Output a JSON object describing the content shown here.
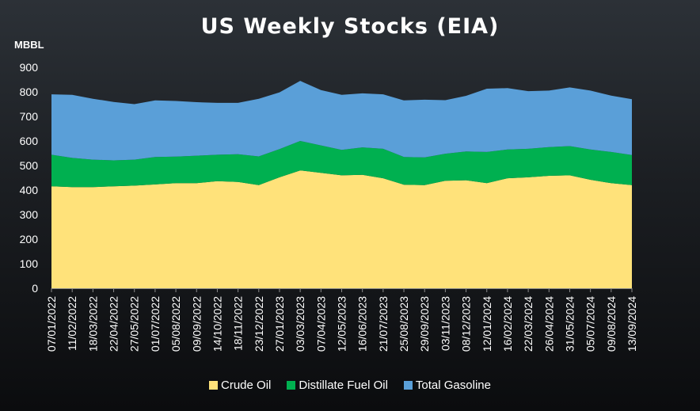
{
  "chart_data": {
    "type": "area",
    "stacked": true,
    "title": "US Weekly Stocks (EIA)",
    "ylabel": "MBBL",
    "ylim": [
      0,
      900
    ],
    "yticks": [
      0,
      100,
      200,
      300,
      400,
      500,
      600,
      700,
      800,
      900
    ],
    "grid": false,
    "legend_position": "bottom",
    "x_tick_labels": [
      "07/01/2022",
      "11/02/2022",
      "18/03/2022",
      "22/04/2022",
      "27/05/2022",
      "01/07/2022",
      "05/08/2022",
      "09/09/2022",
      "14/10/2022",
      "18/11/2022",
      "23/12/2022",
      "27/01/2023",
      "03/03/2023",
      "07/04/2023",
      "12/05/2023",
      "16/06/2023",
      "21/07/2023",
      "25/08/2023",
      "29/09/2023",
      "03/11/2023",
      "08/12/2023",
      "12/01/2024",
      "16/02/2024",
      "22/03/2024",
      "26/04/2024",
      "31/05/2024",
      "05/07/2024",
      "09/08/2024",
      "13/09/2024"
    ],
    "x": [
      "07/01/2022",
      "11/02/2022",
      "18/03/2022",
      "22/04/2022",
      "27/05/2022",
      "01/07/2022",
      "05/08/2022",
      "09/09/2022",
      "14/10/2022",
      "18/11/2022",
      "23/12/2022",
      "27/01/2023",
      "03/03/2023",
      "07/04/2023",
      "12/05/2023",
      "16/06/2023",
      "21/07/2023",
      "25/08/2023",
      "29/09/2023",
      "03/11/2023",
      "08/12/2023",
      "12/01/2024",
      "16/02/2024",
      "22/03/2024",
      "26/04/2024",
      "31/05/2024",
      "05/07/2024",
      "09/08/2024",
      "13/09/2024"
    ],
    "series": [
      {
        "name": "Crude Oil",
        "color": "#ffe27a",
        "values": [
          415,
          412,
          412,
          415,
          418,
          423,
          428,
          428,
          436,
          433,
          420,
          452,
          480,
          470,
          460,
          462,
          448,
          422,
          420,
          438,
          440,
          428,
          448,
          452,
          458,
          460,
          442,
          428,
          420
        ]
      },
      {
        "name": "Distillate Fuel Oil",
        "color": "#00b050",
        "values": [
          129,
          119,
          112,
          106,
          106,
          112,
          108,
          112,
          108,
          113,
          117,
          115,
          120,
          112,
          104,
          112,
          120,
          113,
          113,
          110,
          117,
          127,
          117,
          116,
          117,
          119,
          123,
          127,
          123
        ]
      },
      {
        "name": "Total Gasoline",
        "color": "#5a9fd8",
        "values": [
          246,
          257,
          248,
          238,
          226,
          230,
          227,
          218,
          211,
          209,
          235,
          231,
          245,
          225,
          224,
          220,
          222,
          230,
          235,
          218,
          227,
          258,
          250,
          235,
          230,
          239,
          240,
          230,
          227
        ]
      }
    ]
  }
}
